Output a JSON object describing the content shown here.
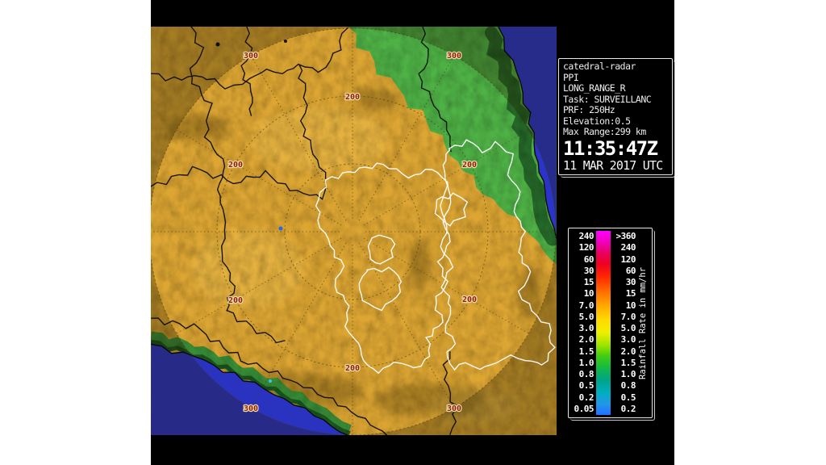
{
  "window": {
    "background": "#ffffff",
    "panel_background": "#000000"
  },
  "radar_info": {
    "station": "catedral-radar",
    "scan_type": "PPI",
    "product": "LONG_RANGE_R",
    "task": "Task: SURVEILLANC",
    "prf": "PRF: 250Hz",
    "elevation": "Elevation:0.5",
    "max_range": "Max Range:299 km",
    "time": "11:35:47Z",
    "date": "11 MAR 2017 UTC"
  },
  "legend": {
    "title": "Rainfall Rate in mm/hr",
    "rows": [
      {
        "left": "240",
        "right": ">360"
      },
      {
        "left": "120",
        "right": "240"
      },
      {
        "left": "60",
        "right": "120"
      },
      {
        "left": "30",
        "right": "60"
      },
      {
        "left": "15",
        "right": "30"
      },
      {
        "left": "10",
        "right": "15"
      },
      {
        "left": "7.0",
        "right": "10"
      },
      {
        "left": "5.0",
        "right": "7.0"
      },
      {
        "left": "3.0",
        "right": "5.0"
      },
      {
        "left": "2.0",
        "right": "3.0"
      },
      {
        "left": "1.5",
        "right": "2.0"
      },
      {
        "left": "1.0",
        "right": "1.5"
      },
      {
        "left": "0.8",
        "right": "1.0"
      },
      {
        "left": "0.5",
        "right": "0.8"
      },
      {
        "left": "0.2",
        "right": "0.5"
      },
      {
        "left": "0.05",
        "right": "0.2"
      }
    ],
    "gradient": [
      {
        "pct": 0,
        "color": "#ff00ff"
      },
      {
        "pct": 6,
        "color": "#f000c0"
      },
      {
        "pct": 12,
        "color": "#e80060"
      },
      {
        "pct": 18,
        "color": "#f00020"
      },
      {
        "pct": 25,
        "color": "#ff2800"
      },
      {
        "pct": 33,
        "color": "#ff6e00"
      },
      {
        "pct": 40,
        "color": "#ffa400"
      },
      {
        "pct": 48,
        "color": "#ffd800"
      },
      {
        "pct": 55,
        "color": "#f0f000"
      },
      {
        "pct": 62,
        "color": "#a0e400"
      },
      {
        "pct": 68,
        "color": "#40cc10"
      },
      {
        "pct": 75,
        "color": "#10b84a"
      },
      {
        "pct": 81,
        "color": "#00a487"
      },
      {
        "pct": 88,
        "color": "#00aec0"
      },
      {
        "pct": 94,
        "color": "#2496e8"
      },
      {
        "pct": 100,
        "color": "#2070ff"
      }
    ]
  },
  "map": {
    "rings_km": [
      100,
      200,
      300
    ],
    "range_ring_labels": [
      {
        "text": "200",
        "radius_km": 200,
        "azimuths_deg": [
          0,
          60,
          120,
          180,
          240,
          300
        ]
      },
      {
        "text": "300",
        "radius_km": 300,
        "azimuths_deg": [
          30,
          150,
          210,
          330
        ]
      }
    ],
    "colors": {
      "terrain": "#dda633",
      "lowland_green": "#4fb246",
      "coast_relief_green": "#1d5a24",
      "ocean": "#2a32c0",
      "ring_line": "#4a3a0c",
      "ring_label": "#8c1e0a",
      "ring_label_halo": "#ecd9a8",
      "state_border": "#0a0a0a",
      "highlight_border": "#ffffff"
    }
  }
}
